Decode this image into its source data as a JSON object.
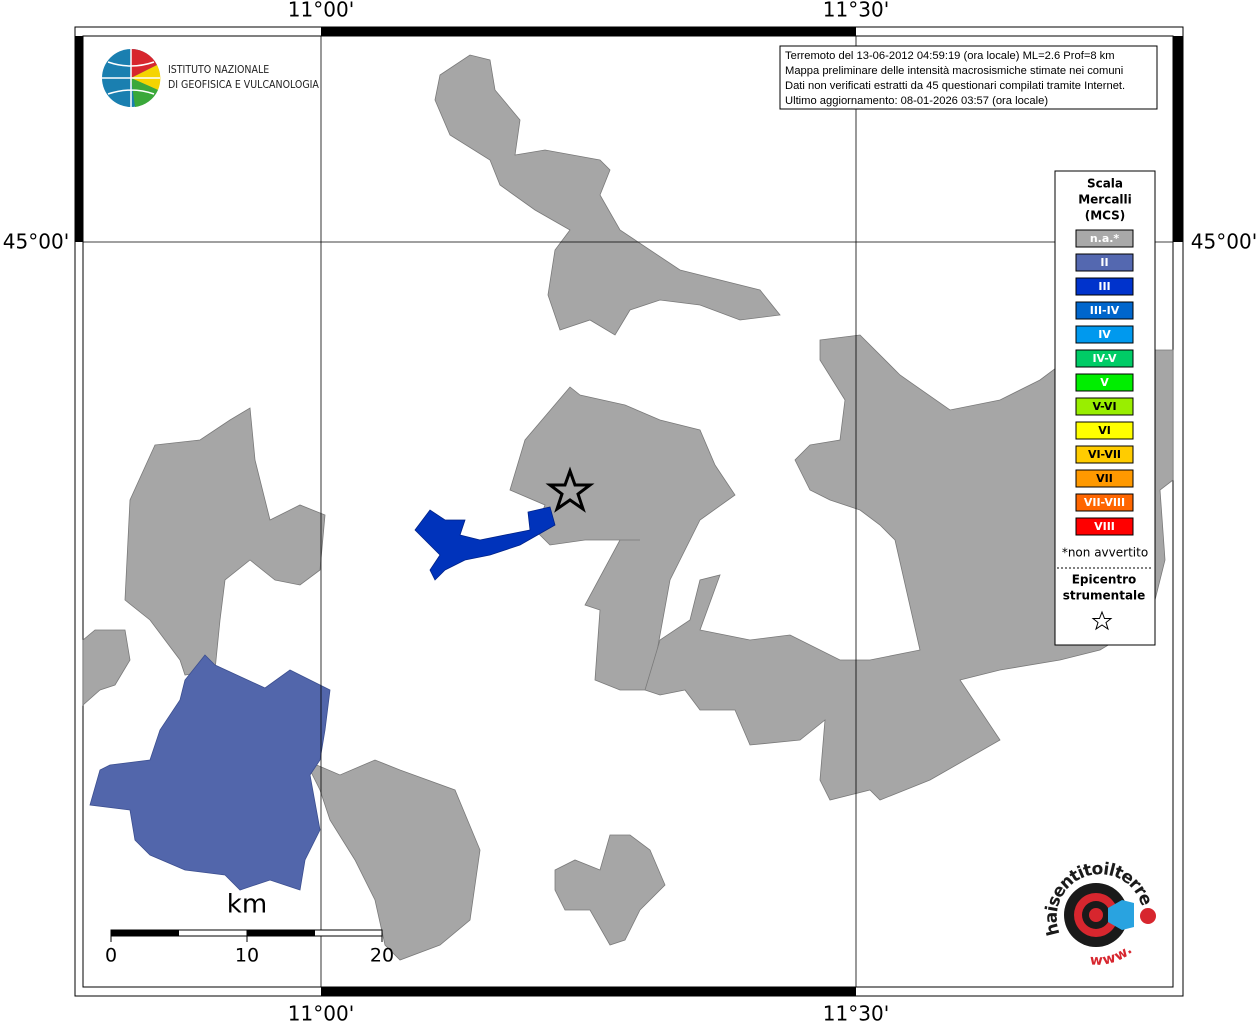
{
  "axes": {
    "top": [
      "11°00'",
      "11°30'"
    ],
    "bottom": [
      "11°00'",
      "11°30'"
    ],
    "left": [
      "45°00'"
    ],
    "right": [
      "45°00'"
    ]
  },
  "logo_ingv": {
    "lines": [
      "ISTITUTO NAZIONALE",
      "DI GEOFISICA E VULCANOLOGIA"
    ]
  },
  "info": {
    "lines": [
      "Terremoto del 13-06-2012 04:59:19 (ora locale) ML=2.6 Prof=8 km",
      "Mappa preliminare delle intensità macrosismiche stimate nei comuni",
      "Dati non verificati estratti da 45 questionari compilati tramite Internet.",
      "Ultimo aggiornamento: 08-01-2026 03:57 (ora locale)"
    ]
  },
  "legend": {
    "title": [
      "Scala",
      "Mercalli",
      "(MCS)"
    ],
    "items": [
      {
        "label": "n.a.*",
        "color": "#a9a9a9"
      },
      {
        "label": "II",
        "color": "#5468b0"
      },
      {
        "label": "III",
        "color": "#0033cc"
      },
      {
        "label": "III-IV",
        "color": "#0066cc"
      },
      {
        "label": "IV",
        "color": "#0099ee"
      },
      {
        "label": "IV-V",
        "color": "#00cc66"
      },
      {
        "label": "V",
        "color": "#00ee00"
      },
      {
        "label": "V-VI",
        "color": "#99ee00"
      },
      {
        "label": "VI",
        "color": "#ffff00"
      },
      {
        "label": "VI-VII",
        "color": "#ffcc00"
      },
      {
        "label": "VII",
        "color": "#ff9900"
      },
      {
        "label": "VII-VIII",
        "color": "#ff6600"
      },
      {
        "label": "VIII",
        "color": "#ff0000"
      }
    ],
    "note": "*non avvertito",
    "epicenter": [
      "Epicentro",
      "strumentale"
    ]
  },
  "scale_bar": {
    "unit": "km",
    "labels": [
      "0",
      "10",
      "20"
    ]
  },
  "logo_hst": {
    "text": "haisentitoilterremoto.it",
    "prefix": "www."
  }
}
